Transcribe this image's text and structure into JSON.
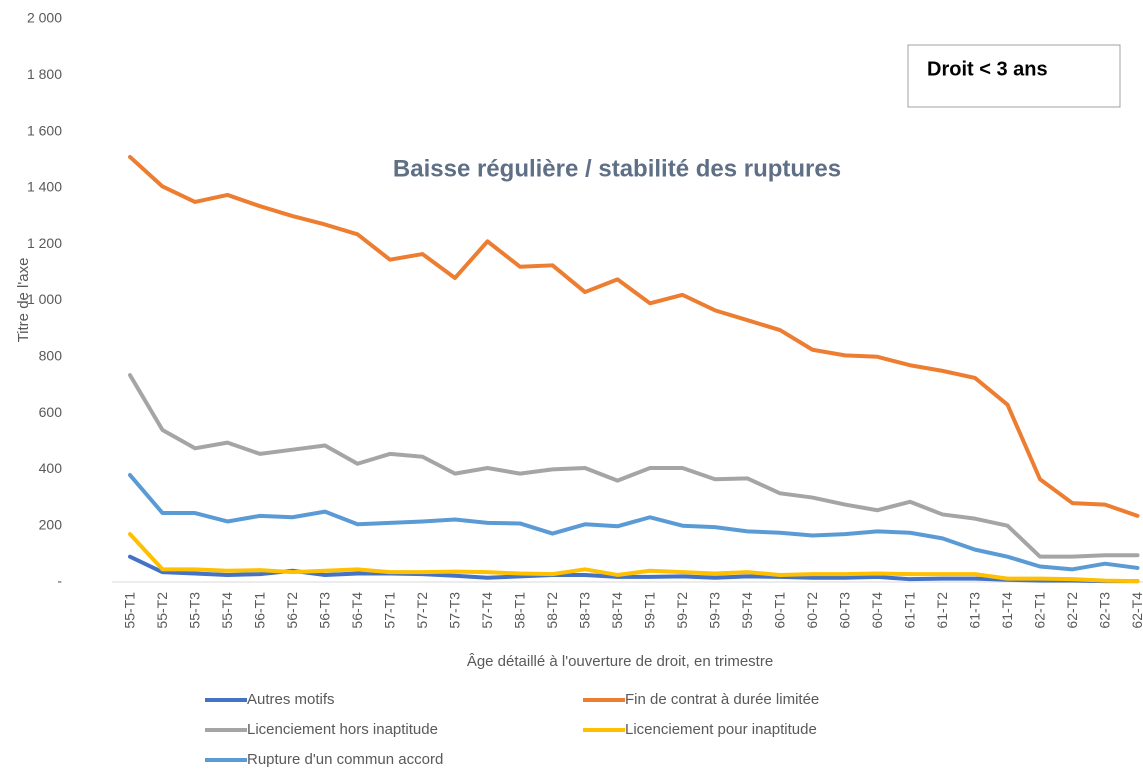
{
  "chart_data": {
    "type": "line",
    "annotation": "Baisse régulière / stabilité des ruptures",
    "box_label": "Droit < 3 ans",
    "ylabel": "Titre de l'axe",
    "xlabel": "Âge détaillé à l'ouverture de droit, en trimestre",
    "categories": [
      "55-T1",
      "55-T2",
      "55-T3",
      "55-T4",
      "56-T1",
      "56-T2",
      "56-T3",
      "56-T4",
      "57-T1",
      "57-T2",
      "57-T3",
      "57-T4",
      "58-T1",
      "58-T2",
      "58-T3",
      "58-T4",
      "59-T1",
      "59-T2",
      "59-T3",
      "59-T4",
      "60-T1",
      "60-T2",
      "60-T3",
      "60-T4",
      "61-T1",
      "61-T2",
      "61-T3",
      "61-T4",
      "62-T1",
      "62-T2",
      "62-T3",
      "62-T4"
    ],
    "ylim": [
      0,
      2000
    ],
    "yticks": [
      {
        "value": 0,
        "label": "-"
      },
      200,
      400,
      600,
      800,
      {
        "value": 1000,
        "label": "1 000"
      },
      {
        "value": 1200,
        "label": "1 200"
      },
      {
        "value": 1400,
        "label": "1 400"
      },
      {
        "value": 1600,
        "label": "1 600"
      },
      {
        "value": 1800,
        "label": "1 800"
      },
      {
        "value": 2000,
        "label": "2 000"
      }
    ],
    "series": [
      {
        "name": "Autres motifs",
        "color": "#4472c4",
        "values": [
          90,
          35,
          30,
          25,
          28,
          40,
          25,
          30,
          30,
          28,
          22,
          15,
          20,
          25,
          25,
          18,
          18,
          20,
          15,
          20,
          18,
          15,
          15,
          18,
          10,
          12,
          12,
          8,
          5,
          5,
          3,
          3
        ]
      },
      {
        "name": "Fin de contrat à durée limitée",
        "color": "#ed7d31",
        "values": [
          1510,
          1405,
          1350,
          1375,
          1335,
          1300,
          1270,
          1235,
          1145,
          1165,
          1080,
          1210,
          1120,
          1125,
          1030,
          1075,
          990,
          1020,
          965,
          930,
          895,
          825,
          805,
          800,
          770,
          750,
          725,
          630,
          365,
          280,
          275,
          235
        ]
      },
      {
        "name": "Licenciement hors inaptitude",
        "color": "#a5a5a5",
        "values": [
          735,
          540,
          475,
          495,
          455,
          470,
          485,
          420,
          455,
          445,
          385,
          405,
          385,
          400,
          405,
          360,
          405,
          405,
          365,
          368,
          315,
          300,
          275,
          255,
          285,
          240,
          225,
          200,
          90,
          90,
          95,
          95
        ]
      },
      {
        "name": "Licenciement pour inaptitude",
        "color": "#ffc000",
        "values": [
          170,
          45,
          45,
          40,
          42,
          35,
          40,
          45,
          35,
          35,
          37,
          35,
          30,
          28,
          45,
          25,
          40,
          35,
          30,
          35,
          25,
          28,
          28,
          30,
          28,
          28,
          28,
          12,
          12,
          10,
          5,
          3
        ]
      },
      {
        "name": "Rupture d'un commun accord",
        "color": "#5b9bd5",
        "values": [
          380,
          245,
          245,
          215,
          235,
          230,
          250,
          205,
          210,
          215,
          222,
          210,
          208,
          172,
          205,
          198,
          230,
          200,
          195,
          180,
          175,
          165,
          170,
          180,
          175,
          155,
          115,
          90,
          55,
          45,
          65,
          50
        ]
      }
    ]
  }
}
